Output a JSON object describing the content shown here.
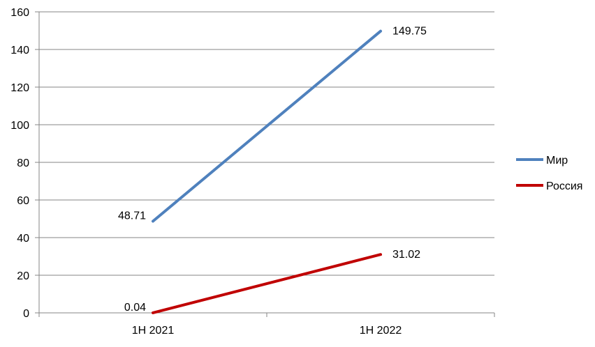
{
  "chart_data": {
    "type": "line",
    "categories": [
      "1H 2021",
      "1H 2022"
    ],
    "series": [
      {
        "name": "Мир",
        "values": [
          48.71,
          149.75
        ],
        "labels": [
          "48.71",
          "149.75"
        ],
        "color": "#4F81BD"
      },
      {
        "name": "Россия",
        "values": [
          0.04,
          31.02
        ],
        "labels": [
          "0.04",
          "31.02"
        ],
        "color": "#C00000"
      }
    ],
    "ylim": [
      0,
      160
    ],
    "yticks": [
      "0",
      "20",
      "40",
      "60",
      "80",
      "100",
      "120",
      "140",
      "160"
    ],
    "grid": true,
    "legend_position": "right"
  }
}
